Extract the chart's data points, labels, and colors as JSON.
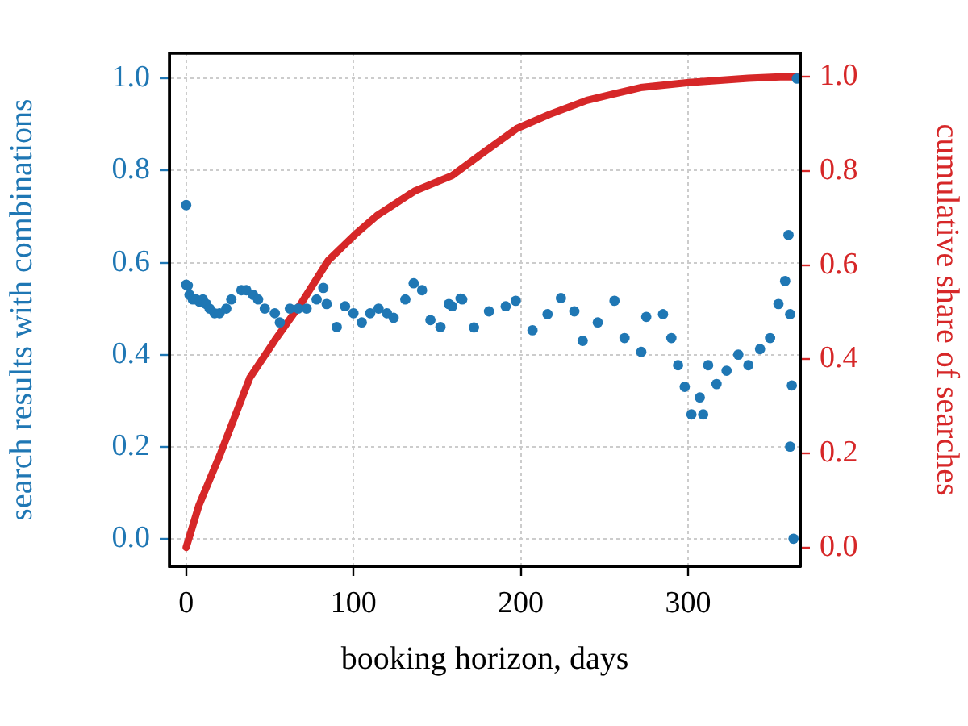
{
  "chart_data": {
    "type": "scatter",
    "xlabel": "booking horizon, days",
    "ylabel": "search results with combinations",
    "y2label": "cumulative share of searches",
    "xlim": [
      -10,
      367
    ],
    "xticks": [
      0,
      100,
      200,
      300
    ],
    "ylim": [
      -0.06,
      1.055
    ],
    "yticks": [
      {
        "value": 0,
        "label": "0.0"
      },
      {
        "value": 0.2,
        "label": "0.2"
      },
      {
        "value": 0.4,
        "label": "0.4"
      },
      {
        "value": 0.6,
        "label": "0.6"
      },
      {
        "value": 0.8,
        "label": "0.8"
      },
      {
        "value": 1,
        "label": "1.0"
      }
    ],
    "y2lim": [
      -0.04,
      1.05
    ],
    "y2ticks": [
      {
        "value": 0,
        "label": "0.0"
      },
      {
        "value": 0.2,
        "label": "0.2"
      },
      {
        "value": 0.4,
        "label": "0.4"
      },
      {
        "value": 0.6,
        "label": "0.6"
      },
      {
        "value": 0.8,
        "label": "0.8"
      },
      {
        "value": 1,
        "label": "1.0"
      }
    ],
    "grid": true,
    "legend": false,
    "series": [
      {
        "marker": "circle",
        "axis": "y",
        "color": "#1f77b4",
        "x": [
          0,
          0,
          1,
          2,
          4,
          6,
          8,
          10,
          12,
          14,
          17,
          20,
          24,
          27,
          33,
          36,
          40,
          43,
          47,
          53,
          56,
          62,
          67,
          72,
          78,
          82,
          84,
          90,
          95,
          100,
          105,
          110,
          115,
          120,
          124,
          131,
          136,
          141,
          146,
          152,
          157,
          159,
          164,
          165,
          172,
          181,
          191,
          197,
          207,
          216,
          224,
          232,
          237,
          246,
          256,
          262,
          272,
          275,
          285,
          290,
          294,
          298,
          302,
          307,
          309,
          312,
          317,
          323,
          330,
          336,
          343,
          349,
          354,
          358,
          360,
          361,
          362,
          361,
          363,
          365
        ],
        "values": [
          0.725,
          0.552,
          0.55,
          0.53,
          0.52,
          0.52,
          0.515,
          0.52,
          0.51,
          0.5,
          0.49,
          0.49,
          0.5,
          0.52,
          0.54,
          0.54,
          0.53,
          0.52,
          0.5,
          0.49,
          0.47,
          0.5,
          0.5,
          0.5,
          0.52,
          0.545,
          0.51,
          0.46,
          0.505,
          0.49,
          0.47,
          0.49,
          0.5,
          0.49,
          0.48,
          0.52,
          0.555,
          0.54,
          0.475,
          0.46,
          0.51,
          0.505,
          0.522,
          0.52,
          0.459,
          0.494,
          0.505,
          0.517,
          0.453,
          0.488,
          0.523,
          0.494,
          0.43,
          0.47,
          0.517,
          0.436,
          0.406,
          0.482,
          0.488,
          0.436,
          0.377,
          0.33,
          0.27,
          0.307,
          0.27,
          0.377,
          0.336,
          0.365,
          0.4,
          0.377,
          0.412,
          0.436,
          0.51,
          0.56,
          0.66,
          0.488,
          0.333,
          0.2,
          0.0,
          1.0
        ]
      },
      {
        "type": "line",
        "marker": "none",
        "axis": "y2",
        "color": "#d62728",
        "x": [
          0,
          7.7,
          20.6,
          38,
          53,
          69,
          85,
          101,
          114,
          136.5,
          159,
          178,
          197.6,
          217,
          239.5,
          271.6,
          300.6,
          336,
          355,
          365
        ],
        "values": [
          0,
          0.09,
          0.2,
          0.36,
          0.44,
          0.52,
          0.61,
          0.665,
          0.705,
          0.757,
          0.79,
          0.84,
          0.89,
          0.92,
          0.95,
          0.977,
          0.988,
          0.997,
          1.0,
          1.0
        ]
      }
    ]
  }
}
